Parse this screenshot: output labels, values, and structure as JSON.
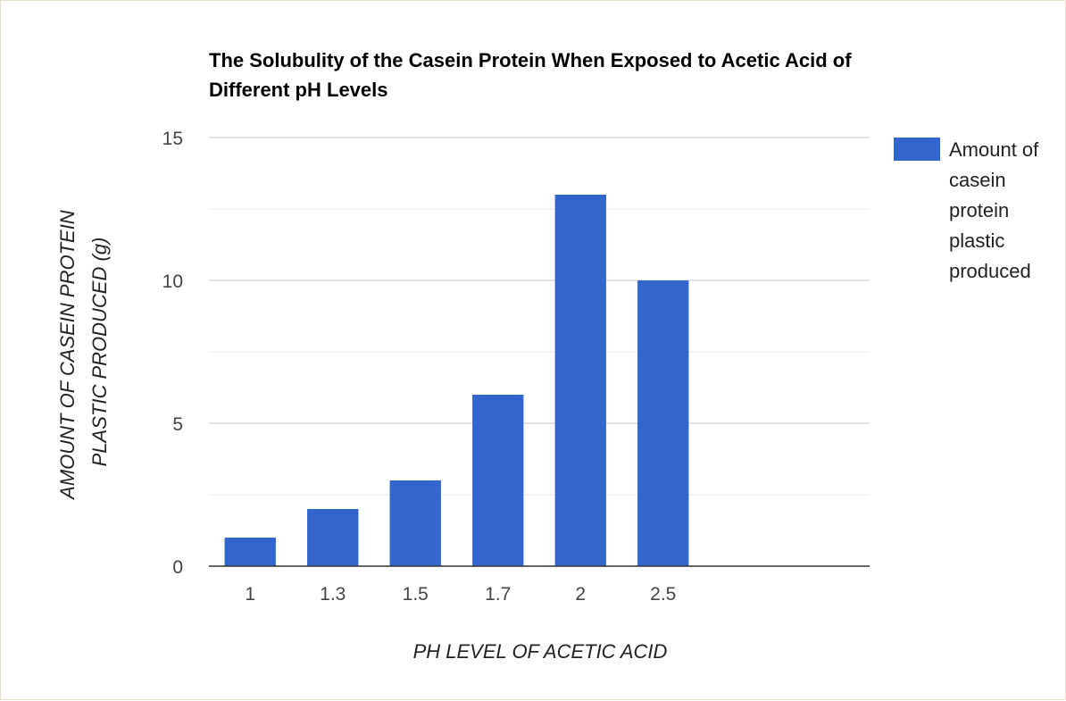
{
  "chart_data": {
    "type": "bar",
    "title": "The Solubulity of the Casein Protein When Exposed to Acetic Acid of Different pH Levels",
    "xlabel": "PH LEVEL OF ACETIC ACID",
    "ylabel": "AMOUNT OF CASEIN PROTEIN PLASTIC PRODUCED (g)",
    "ylabel_lines": [
      "AMOUNT OF CASEIN PROTEIN",
      "PLASTIC PRODUCED (g)"
    ],
    "categories": [
      "1",
      "1.3",
      "1.5",
      "1.7",
      "2",
      "2.5"
    ],
    "series": [
      {
        "name": "Amount of casein protein plastic produced",
        "values": [
          1,
          2,
          3,
          6,
          13,
          10
        ]
      }
    ],
    "ylim": [
      0,
      15
    ],
    "yticks": [
      "0",
      "5",
      "10",
      "15"
    ],
    "grid": true,
    "legend": "right",
    "colors": {
      "bar": "#3366cc",
      "major_grid": "#cccccc",
      "minor_grid": "#ebebeb",
      "baseline": "#333333"
    }
  }
}
